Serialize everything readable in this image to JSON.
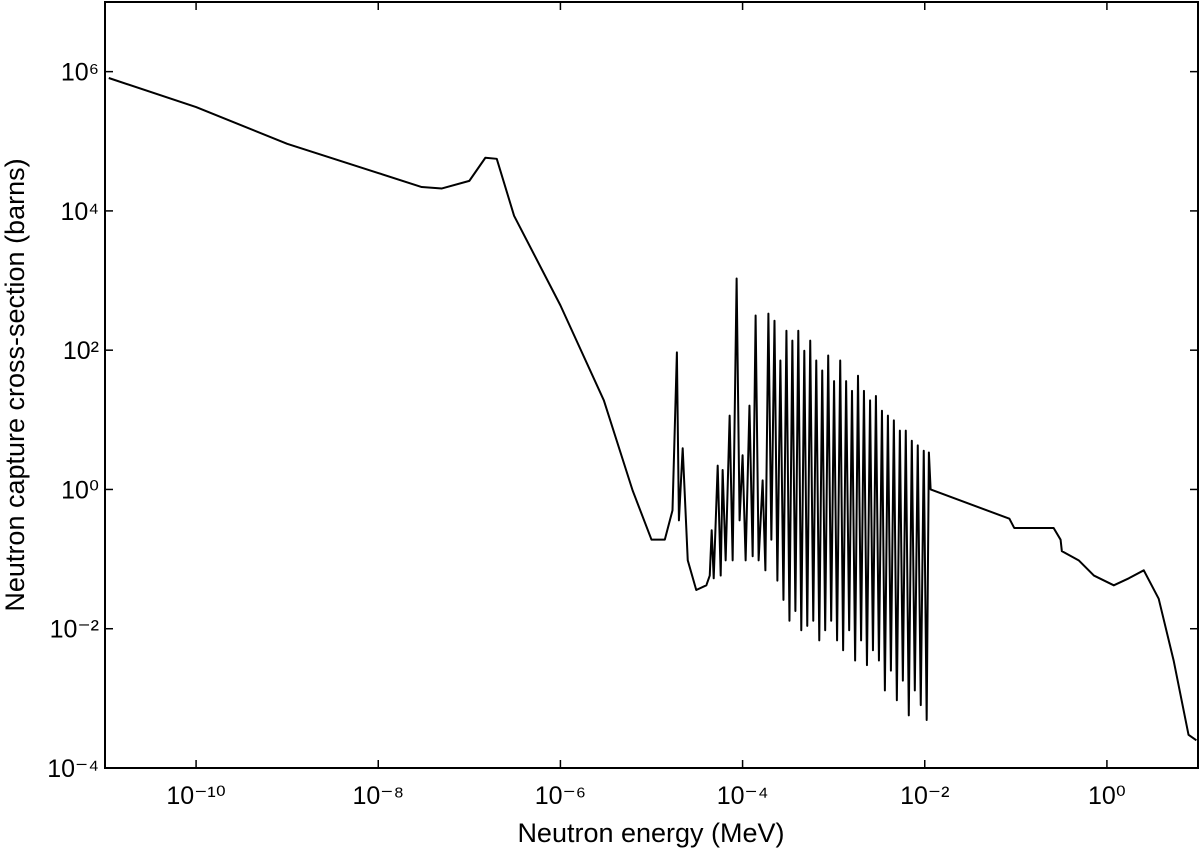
{
  "chart_data": {
    "type": "line",
    "x_label": "Neutron energy (MeV)",
    "y_label": "Neutron capture cross-section (barns)",
    "xscale": "log",
    "yscale": "log",
    "xlim": [
      1e-11,
      10
    ],
    "ylim": [
      0.0001,
      10000000.0
    ],
    "xticks": [
      {
        "value": 1e-10,
        "label": "10⁻¹⁰"
      },
      {
        "value": 1e-08,
        "label": "10⁻⁸"
      },
      {
        "value": 1e-06,
        "label": "10⁻⁶"
      },
      {
        "value": 0.0001,
        "label": "10⁻⁴"
      },
      {
        "value": 0.01,
        "label": "10⁻²"
      },
      {
        "value": 1,
        "label": "10⁰"
      }
    ],
    "yticks": [
      {
        "value": 0.0001,
        "label": "10⁻⁴"
      },
      {
        "value": 0.01,
        "label": "10⁻²"
      },
      {
        "value": 1,
        "label": "10⁰"
      },
      {
        "value": 100,
        "label": "10²"
      },
      {
        "value": 10000,
        "label": "10⁴"
      },
      {
        "value": 1000000,
        "label": "10⁶"
      }
    ],
    "grid": false,
    "series": [
      {
        "color": "#000000",
        "x": [
          1.1e-11,
          1e-10,
          1e-09,
          1e-08,
          3e-08,
          5e-08,
          1e-07,
          1.5e-07,
          2e-07,
          3.1e-07,
          1e-06,
          3e-06,
          6.2e-06,
          1e-05,
          1.4e-05,
          1.7e-05,
          1.9e-05,
          2e-05,
          2.2e-05,
          2.5e-05,
          3.1e-05,
          4e-05,
          4.36e-05,
          4.58e-05,
          4.82e-05,
          5.33e-05,
          5.75e-05,
          6.04e-05,
          6.52e-05,
          7.21e-05,
          7.78e-05,
          8.6e-05,
          9.27e-05,
          0.0001,
          0.000108,
          0.000119,
          0.000129,
          0.000139,
          0.00015,
          0.000166,
          0.000178,
          0.000192,
          0.000207,
          0.000224,
          0.000241,
          0.00026,
          0.000281,
          0.000303,
          0.000327,
          0.000352,
          0.00038,
          0.000409,
          0.000441,
          0.000476,
          0.000513,
          0.000553,
          0.000597,
          0.000644,
          0.000695,
          0.000749,
          0.000807,
          0.000871,
          0.000939,
          0.00101,
          0.00109,
          0.00118,
          0.00127,
          0.00137,
          0.00148,
          0.00159,
          0.00172,
          0.00185,
          0.002,
          0.00215,
          0.00232,
          0.00251,
          0.0027,
          0.00291,
          0.00314,
          0.00339,
          0.00365,
          0.00394,
          0.00425,
          0.00458,
          0.00494,
          0.00533,
          0.00575,
          0.00619,
          0.00668,
          0.00721,
          0.00778,
          0.00838,
          0.00904,
          0.00975,
          0.0105,
          0.0111,
          0.0116,
          0.085,
          0.096,
          0.26,
          0.31,
          0.32,
          0.49,
          0.72,
          1.19,
          1.74,
          2.54,
          3.7,
          5.4,
          7.87,
          9.6
        ],
        "values": [
          810000,
          310000,
          92000,
          35000,
          22000,
          21000,
          27000,
          58000,
          56000,
          8500,
          440,
          19,
          0.97,
          0.19,
          0.19,
          0.5,
          93,
          0.36,
          3.9,
          0.096,
          0.036,
          0.042,
          0.058,
          0.26,
          0.053,
          2.2,
          0.058,
          1.9,
          0.096,
          11.5,
          0.096,
          1070,
          0.36,
          3.1,
          0.096,
          16,
          0.11,
          315,
          0.096,
          1.35,
          0.069,
          335,
          0.19,
          265,
          0.049,
          71,
          0.026,
          190,
          0.013,
          137,
          0.018,
          190,
          0.0095,
          98,
          0.011,
          137,
          0.013,
          71,
          0.0068,
          51,
          0.0095,
          84,
          0.013,
          36,
          0.0068,
          71,
          0.0049,
          36,
          0.0095,
          26,
          0.0035,
          43,
          0.0068,
          26,
          0.003,
          19,
          0.0049,
          22,
          0.0035,
          13.5,
          0.0013,
          11.5,
          0.0025,
          9.8,
          0.00094,
          7.0,
          0.0018,
          7.0,
          0.00057,
          5.0,
          0.0013,
          4.3,
          0.0008,
          3.6,
          0.00049,
          3.4,
          1.0,
          0.38,
          0.28,
          0.28,
          0.19,
          0.13,
          0.096,
          0.058,
          0.042,
          0.053,
          0.069,
          0.027,
          0.0035,
          0.0003,
          0.00025
        ]
      }
    ]
  }
}
